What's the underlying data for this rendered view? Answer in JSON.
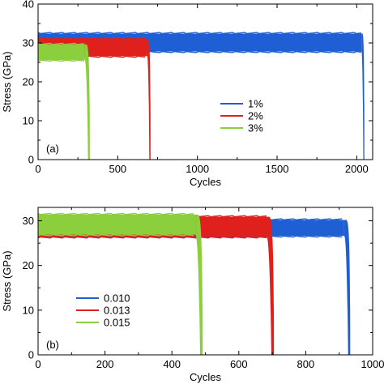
{
  "colors": {
    "blue": "#1f5fd6",
    "red": "#e0201c",
    "green": "#8ccf3c",
    "axis": "#000000"
  },
  "chart_data": [
    {
      "type": "area",
      "panel_label": "(a)",
      "xlabel": "Cycles",
      "ylabel": "Stress (GPa)",
      "xlim": [
        0,
        2100
      ],
      "ylim": [
        0,
        40
      ],
      "xticks": [
        0,
        500,
        1000,
        1500,
        2000
      ],
      "yticks": [
        0,
        10,
        20,
        30,
        40
      ],
      "legend_placement": "center-right",
      "series": [
        {
          "name": "1%",
          "color": "blue",
          "y_upper": 32.4,
          "y_lower": 27.8,
          "failure_cycle": 2030,
          "zero_cycle": 2048
        },
        {
          "name": "2%",
          "color": "red",
          "y_upper": 31.0,
          "y_lower": 26.6,
          "failure_cycle": 685,
          "zero_cycle": 706
        },
        {
          "name": "3%",
          "color": "green",
          "y_upper": 29.6,
          "y_lower": 25.6,
          "failure_cycle": 293,
          "zero_cycle": 325
        }
      ]
    },
    {
      "type": "area",
      "panel_label": "(b)",
      "xlabel": "Cycles",
      "ylabel": "Stress (GPa)",
      "xlim": [
        0,
        1000
      ],
      "ylim": [
        0,
        33
      ],
      "xticks": [
        0,
        200,
        400,
        600,
        800,
        1000
      ],
      "yticks": [
        0,
        10,
        20,
        30
      ],
      "legend_placement": "bottom-left",
      "series": [
        {
          "name": "0.010",
          "color": "blue",
          "y_upper": 30.2,
          "y_lower": 26.6,
          "failure_cycle": 915,
          "zero_cycle": 933
        },
        {
          "name": "0.013",
          "color": "red",
          "y_upper": 30.9,
          "y_lower": 26.4,
          "failure_cycle": 683,
          "zero_cycle": 705
        },
        {
          "name": "0.015",
          "color": "green",
          "y_upper": 31.4,
          "y_lower": 26.9,
          "failure_cycle": 470,
          "zero_cycle": 492
        }
      ]
    }
  ]
}
